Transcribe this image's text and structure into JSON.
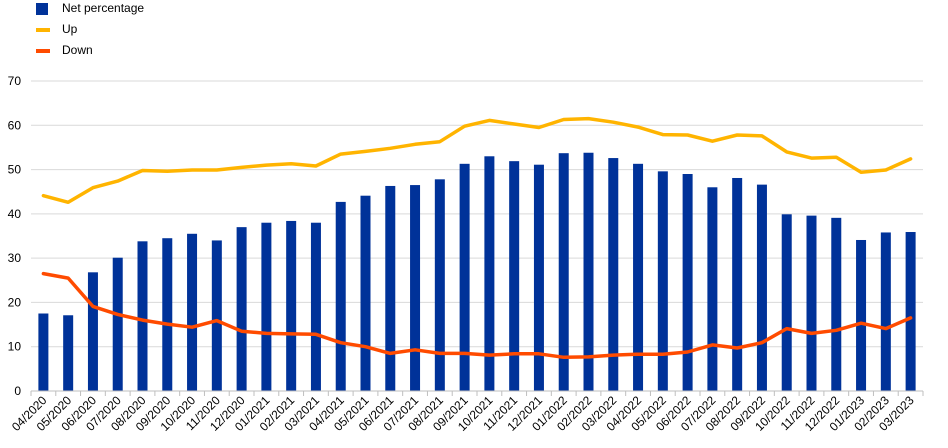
{
  "chart_data": {
    "type": "bar",
    "categories": [
      "04/2020",
      "05/2020",
      "06/2020",
      "07/2020",
      "08/2020",
      "09/2020",
      "10/2020",
      "11/2020",
      "12/2020",
      "01/2021",
      "02/2021",
      "03/2021",
      "04/2021",
      "05/2021",
      "06/2021",
      "07/2021",
      "08/2021",
      "09/2021",
      "10/2021",
      "11/2021",
      "12/2021",
      "01/2022",
      "02/2022",
      "03/2022",
      "04/2022",
      "05/2022",
      "06/2022",
      "07/2022",
      "08/2022",
      "09/2022",
      "10/2022",
      "11/2022",
      "12/2022",
      "01/2023",
      "02/2023",
      "03/2023"
    ],
    "series": [
      {
        "name": "Net percentage",
        "type": "bar",
        "color": "#003299",
        "values": [
          17.5,
          17.1,
          26.8,
          30.1,
          33.8,
          34.5,
          35.5,
          34.0,
          37.0,
          38.0,
          38.4,
          38.0,
          42.7,
          44.1,
          46.3,
          46.5,
          47.8,
          51.3,
          53.0,
          51.9,
          51.1,
          53.7,
          53.8,
          52.6,
          51.3,
          49.6,
          49.0,
          46.0,
          48.1,
          46.6,
          39.9,
          39.6,
          39.1,
          34.1,
          35.8,
          35.9
        ]
      },
      {
        "name": "Up",
        "type": "line",
        "color": "#FFB400",
        "values": [
          44.1,
          42.6,
          45.9,
          47.4,
          49.8,
          49.6,
          49.9,
          49.9,
          50.5,
          51.0,
          51.3,
          50.8,
          53.5,
          54.1,
          54.8,
          55.7,
          56.3,
          59.8,
          61.1,
          60.3,
          59.5,
          61.3,
          61.5,
          60.7,
          59.6,
          57.9,
          57.8,
          56.4,
          57.8,
          57.6,
          54.0,
          52.6,
          52.8,
          49.4,
          49.9,
          52.4
        ]
      },
      {
        "name": "Down",
        "type": "line",
        "color": "#FF4B00",
        "values": [
          26.5,
          25.5,
          19.1,
          17.3,
          16.0,
          15.1,
          14.4,
          15.9,
          13.5,
          13.0,
          12.9,
          12.8,
          10.9,
          10.0,
          8.5,
          9.3,
          8.5,
          8.5,
          8.1,
          8.4,
          8.4,
          7.6,
          7.7,
          8.1,
          8.3,
          8.3,
          8.8,
          10.4,
          9.7,
          10.9,
          14.1,
          13.0,
          13.7,
          15.3,
          14.1,
          16.5
        ]
      }
    ],
    "yticks": [
      "0",
      "10",
      "20",
      "30",
      "40",
      "50",
      "60",
      "70"
    ],
    "ylim": [
      0,
      70
    ],
    "grid": true,
    "legend_position": "top-left"
  }
}
